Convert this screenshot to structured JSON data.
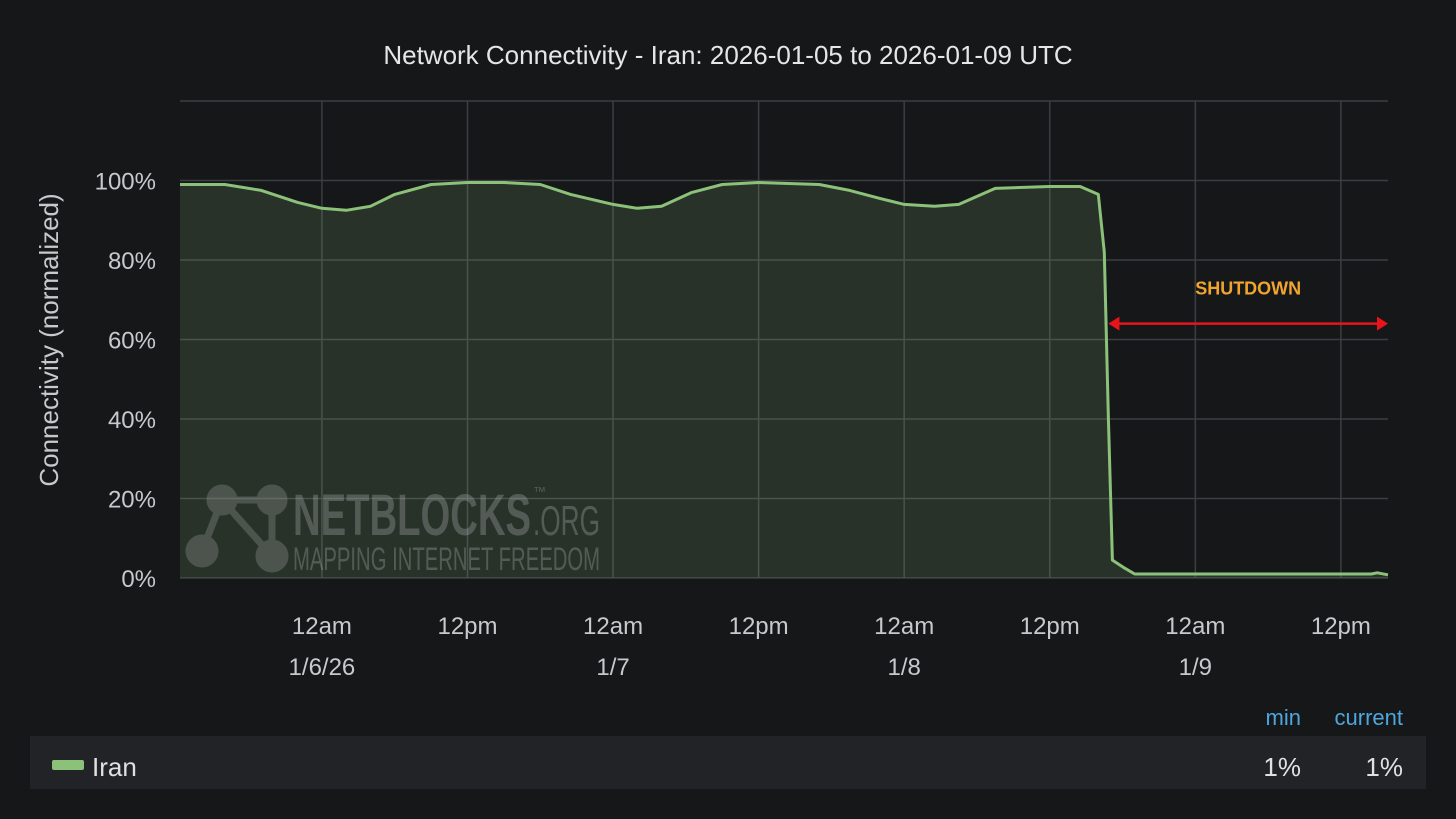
{
  "chart_data": {
    "type": "line",
    "title": "Network Connectivity - Iran: 2026-01-05 to 2026-01-09 UTC",
    "y_label": "Connectivity (normalized)",
    "x": [
      "2026-01-05T12:18",
      "2026-01-05T16:00",
      "2026-01-05T19:00",
      "2026-01-05T22:00",
      "2026-01-06T00:00",
      "2026-01-06T02:00",
      "2026-01-06T04:00",
      "2026-01-06T06:00",
      "2026-01-06T09:00",
      "2026-01-06T12:00",
      "2026-01-06T15:00",
      "2026-01-06T18:00",
      "2026-01-06T20:30",
      "2026-01-07T00:00",
      "2026-01-07T02:00",
      "2026-01-07T04:00",
      "2026-01-07T06:30",
      "2026-01-07T09:00",
      "2026-01-07T12:00",
      "2026-01-07T17:00",
      "2026-01-07T19:30",
      "2026-01-07T22:00",
      "2026-01-08T00:00",
      "2026-01-08T02:30",
      "2026-01-08T04:30",
      "2026-01-08T07:30",
      "2026-01-08T12:00",
      "2026-01-08T14:30",
      "2026-01-08T16:00",
      "2026-01-08T16:30",
      "2026-01-08T16:50",
      "2026-01-08T17:10",
      "2026-01-08T18:10",
      "2026-01-08T19:00",
      "2026-01-09T14:30",
      "2026-01-09T15:00",
      "2026-01-09T15:53"
    ],
    "series": [
      {
        "name": "Iran",
        "color": "#8cc17a",
        "values": [
          99,
          99,
          97.5,
          94.5,
          93,
          92.5,
          93.5,
          96.5,
          99,
          99.5,
          99.5,
          99,
          96.5,
          94,
          93,
          93.5,
          97,
          99,
          99.5,
          99,
          97.5,
          95.5,
          94,
          93.5,
          94,
          98,
          98.5,
          98.5,
          96.5,
          82,
          40,
          4.5,
          2.5,
          1,
          1,
          1.3,
          0.8
        ],
        "legend_values": [
          "1%",
          "1%"
        ]
      }
    ],
    "legend_columns": [
      "min",
      "current"
    ],
    "xlim": [
      "2026-01-05T12:18",
      "2026-01-09T15:53"
    ],
    "xticks": [
      {
        "value": "2026-01-06T00:00",
        "label": [
          "12am",
          "1/6/26"
        ]
      },
      {
        "value": "2026-01-06T12:00",
        "label": [
          "12pm"
        ]
      },
      {
        "value": "2026-01-07T00:00",
        "label": [
          "12am",
          "1/7"
        ]
      },
      {
        "value": "2026-01-07T12:00",
        "label": [
          "12pm"
        ]
      },
      {
        "value": "2026-01-08T00:00",
        "label": [
          "12am",
          "1/8"
        ]
      },
      {
        "value": "2026-01-08T12:00",
        "label": [
          "12pm"
        ]
      },
      {
        "value": "2026-01-09T00:00",
        "label": [
          "12am",
          "1/9"
        ]
      },
      {
        "value": "2026-01-09T12:00",
        "label": [
          "12pm"
        ]
      }
    ],
    "ylim": [
      0,
      120
    ],
    "yticks": [
      {
        "value": 0,
        "label": "0%"
      },
      {
        "value": 20,
        "label": "20%"
      },
      {
        "value": 40,
        "label": "40%"
      },
      {
        "value": 60,
        "label": "60%"
      },
      {
        "value": 80,
        "label": "80%"
      },
      {
        "value": 100,
        "label": "100%"
      }
    ],
    "grid": true,
    "annotation": {
      "text": "SHUTDOWN",
      "x_start": "2026-01-08T16:50",
      "x_end": "2026-01-09T15:53",
      "y": 64,
      "color": "#e8141a",
      "text_color": "#f0a52e"
    },
    "watermark": {
      "name": "NETBLOCKS",
      "suffix": ".ORG",
      "mark": "™",
      "tagline": "MAPPING INTERNET FREEDOM"
    }
  }
}
